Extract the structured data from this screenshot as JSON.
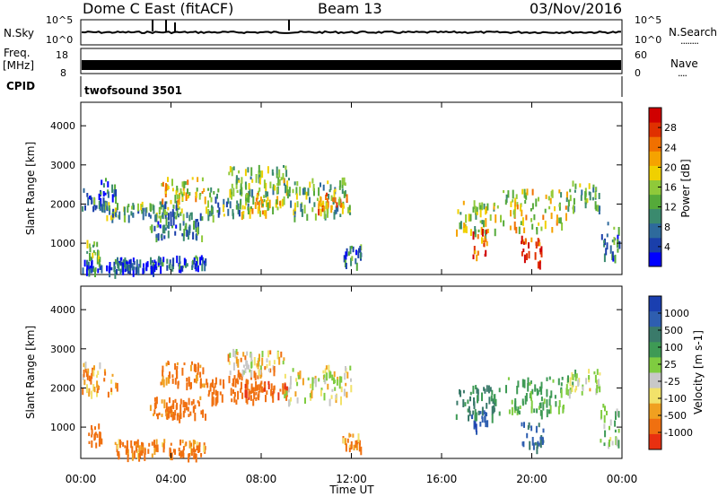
{
  "header": {
    "station": "Dome C East (fitACF)",
    "beam": "Beam 13",
    "date": "03/Nov/2016"
  },
  "sky_panel": {
    "left_label": "N.Sky",
    "right_label": "N.Search",
    "left_ticks": [
      "10^5",
      "10^0"
    ],
    "right_ticks": [
      "10^5",
      "10^0"
    ],
    "right_legend": "........"
  },
  "freq_panel": {
    "left_label_1": "Freq.",
    "left_label_2": "[MHz]",
    "right_label": "Nave",
    "left_ticks": [
      "18",
      "8"
    ],
    "right_ticks": [
      "60",
      "0"
    ],
    "right_legend": "...."
  },
  "cpid_panel": {
    "label": "CPID",
    "program": "twofsound 3501"
  },
  "chart_data": [
    {
      "type": "heatmap",
      "name": "power",
      "ylabel": "Slant Range [km]",
      "yticks": [
        "1000",
        "2000",
        "3000",
        "4000"
      ],
      "ylim": [
        200,
        4600
      ],
      "xlim": [
        0,
        24
      ],
      "colorbar": {
        "label": "Power [dB]",
        "ticks": [
          "4",
          "8",
          "12",
          "16",
          "20",
          "24",
          "28"
        ],
        "colors": [
          "#0000ff",
          "#1a3faa",
          "#2e6a9c",
          "#3a8a6e",
          "#55aa3a",
          "#8fc93a",
          "#f0d000",
          "#f5a300",
          "#f07000",
          "#e03000",
          "#d00000"
        ]
      },
      "blobs": [
        {
          "t0": 0.0,
          "t1": 1.6,
          "r0": 1900,
          "r1": 2700,
          "v": 9
        },
        {
          "t0": 0.2,
          "t1": 0.9,
          "r0": 600,
          "r1": 1100,
          "v": 14
        },
        {
          "t0": 0.0,
          "t1": 2.5,
          "r0": 300,
          "r1": 650,
          "v": 7
        },
        {
          "t0": 1.8,
          "t1": 3.2,
          "r0": 350,
          "r1": 600,
          "v": 6
        },
        {
          "t0": 1.0,
          "t1": 4.5,
          "r0": 1700,
          "r1": 2100,
          "v": 12
        },
        {
          "t0": 3.5,
          "t1": 5.5,
          "r0": 2100,
          "r1": 2700,
          "v": 18
        },
        {
          "t0": 3.0,
          "t1": 5.5,
          "r0": 1200,
          "r1": 1800,
          "v": 10
        },
        {
          "t0": 5.5,
          "t1": 7.5,
          "r0": 1700,
          "r1": 2500,
          "v": 12
        },
        {
          "t0": 6.5,
          "t1": 9.2,
          "r0": 2300,
          "r1": 3000,
          "v": 15
        },
        {
          "t0": 7.0,
          "t1": 9.0,
          "r0": 1800,
          "r1": 2300,
          "v": 18
        },
        {
          "t0": 9.0,
          "t1": 12.0,
          "r0": 1700,
          "r1": 2700,
          "v": 14
        },
        {
          "t0": 10.5,
          "t1": 11.8,
          "r0": 1800,
          "r1": 2300,
          "v": 22
        },
        {
          "t0": 3.0,
          "t1": 5.5,
          "r0": 400,
          "r1": 700,
          "v": 8
        },
        {
          "t0": 11.6,
          "t1": 12.4,
          "r0": 500,
          "r1": 1000,
          "v": 10
        },
        {
          "t0": 16.6,
          "t1": 18.6,
          "r0": 1300,
          "r1": 2100,
          "v": 16
        },
        {
          "t0": 17.3,
          "t1": 18.0,
          "r0": 700,
          "r1": 1400,
          "v": 24
        },
        {
          "t0": 18.7,
          "t1": 21.5,
          "r0": 1400,
          "r1": 2400,
          "v": 18
        },
        {
          "t0": 19.5,
          "t1": 20.5,
          "r0": 500,
          "r1": 1200,
          "v": 26
        },
        {
          "t0": 21.5,
          "t1": 23.0,
          "r0": 1900,
          "r1": 2600,
          "v": 14
        },
        {
          "t0": 23.0,
          "t1": 24.0,
          "r0": 600,
          "r1": 1600,
          "v": 10
        }
      ]
    },
    {
      "type": "heatmap",
      "name": "velocity",
      "ylabel": "Slant Range [km]",
      "xlabel": "Time UT",
      "yticks": [
        "1000",
        "2000",
        "3000",
        "4000"
      ],
      "xticks": [
        "00:00",
        "04:00",
        "08:00",
        "12:00",
        "16:00",
        "20:00",
        "00:00"
      ],
      "ylim": [
        200,
        4600
      ],
      "xlim": [
        0,
        24
      ],
      "colorbar": {
        "label": "Velocity [m s-1]",
        "ticks": [
          "1000",
          "500",
          "100",
          "25",
          "-25",
          "-100",
          "-500",
          "-1000"
        ],
        "colors": [
          "#1a3fb0",
          "#2e5eb0",
          "#3a7a6a",
          "#3e9a55",
          "#7fcc40",
          "#c8c8c8",
          "#f2e26a",
          "#f0a020",
          "#f07010",
          "#e83010"
        ]
      },
      "blobs": [
        {
          "t0": 0.0,
          "t1": 1.6,
          "r0": 1900,
          "r1": 2700,
          "v": -80
        },
        {
          "t0": 0.2,
          "t1": 0.9,
          "r0": 600,
          "r1": 1100,
          "v": -300
        },
        {
          "t0": 1.5,
          "t1": 5.5,
          "r0": 300,
          "r1": 700,
          "v": -150
        },
        {
          "t0": 3.5,
          "t1": 5.5,
          "r0": 2100,
          "r1": 2700,
          "v": -200
        },
        {
          "t0": 3.0,
          "t1": 5.5,
          "r0": 1300,
          "r1": 1800,
          "v": -200
        },
        {
          "t0": 5.5,
          "t1": 8.0,
          "r0": 1700,
          "r1": 2400,
          "v": -250
        },
        {
          "t0": 6.5,
          "t1": 9.0,
          "r0": 2400,
          "r1": 3000,
          "v": 0
        },
        {
          "t0": 7.2,
          "t1": 9.2,
          "r0": 1800,
          "r1": 2200,
          "v": -400
        },
        {
          "t0": 9.0,
          "t1": 12.0,
          "r0": 1700,
          "r1": 2600,
          "v": 80
        },
        {
          "t0": 11.6,
          "t1": 12.4,
          "r0": 500,
          "r1": 900,
          "v": -150
        },
        {
          "t0": 16.6,
          "t1": 18.6,
          "r0": 1300,
          "r1": 2100,
          "v": 500
        },
        {
          "t0": 17.3,
          "t1": 18.0,
          "r0": 900,
          "r1": 1500,
          "v": 900
        },
        {
          "t0": 18.7,
          "t1": 21.5,
          "r0": 1400,
          "r1": 2300,
          "v": 300
        },
        {
          "t0": 19.5,
          "t1": 20.5,
          "r0": 500,
          "r1": 1200,
          "v": 700
        },
        {
          "t0": 21.5,
          "t1": 23.0,
          "r0": 1900,
          "r1": 2500,
          "v": 120
        },
        {
          "t0": 23.0,
          "t1": 24.0,
          "r0": 600,
          "r1": 1600,
          "v": 150
        }
      ]
    }
  ]
}
